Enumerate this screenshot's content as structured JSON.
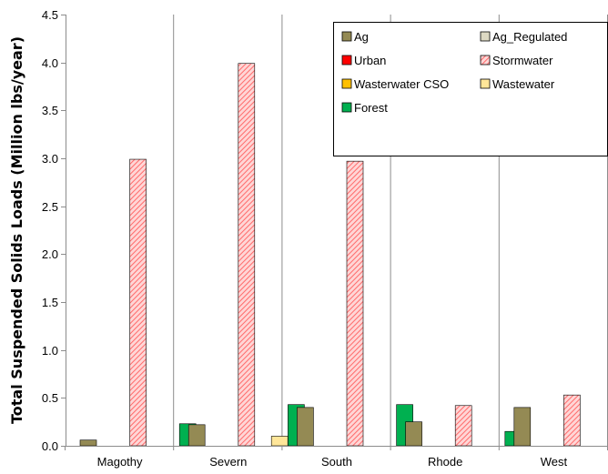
{
  "chart_data": {
    "type": "bar",
    "title": "",
    "xlabel": "",
    "ylabel": "Total Suspended Solids Loads (Million lbs/year)",
    "ylim": [
      0,
      4.5
    ],
    "yticks": [
      "0.0",
      "0.5",
      "1.0",
      "1.5",
      "2.0",
      "2.5",
      "3.0",
      "3.5",
      "4.0",
      "4.5"
    ],
    "grid": "vertical",
    "legend_position": "top-right",
    "categories": [
      "Magothy",
      "Severn",
      "South",
      "Rhode",
      "West"
    ],
    "series": [
      {
        "name": "Ag",
        "color": "#948a54",
        "values": [
          0.06,
          0.22,
          0.4,
          0.25,
          0.4
        ]
      },
      {
        "name": "Ag_Regulated",
        "color": "#ddd9c3",
        "values": [
          0,
          0,
          0,
          0,
          0
        ]
      },
      {
        "name": "Urban",
        "color": "#ff0000",
        "values": [
          0,
          0,
          0,
          0,
          0
        ]
      },
      {
        "name": "Stormwater",
        "color": "#ff9999",
        "pattern": "hatched",
        "values": [
          2.99,
          3.99,
          2.97,
          0.42,
          0.53
        ]
      },
      {
        "name": "Wasterwater CSO",
        "color": "#ffc000",
        "values": [
          0,
          0,
          0,
          0,
          0
        ]
      },
      {
        "name": "Wastewater",
        "color": "#ffe699",
        "values": [
          0,
          0.1,
          0,
          0,
          0
        ]
      },
      {
        "name": "Forest",
        "color": "#00b050",
        "values": [
          0.23,
          0.43,
          0.43,
          0.15,
          0.13
        ]
      }
    ]
  }
}
